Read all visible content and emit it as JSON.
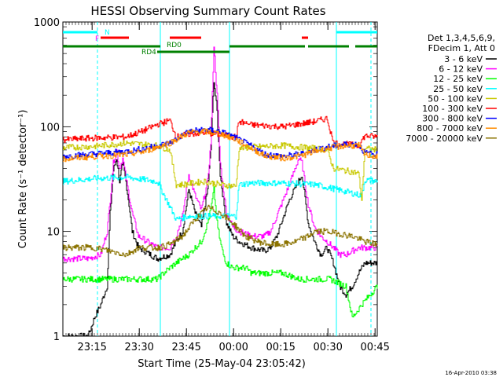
{
  "chart_data": {
    "type": "line",
    "title": "HESSI Observing Summary Count Rates",
    "xlabel": "Start Time (25-May-04 23:05:42)",
    "ylabel": "Count Rate (s⁻¹ detector⁻¹)",
    "yscale": "log",
    "ylim": [
      1,
      1000
    ],
    "xlim_minutes": [
      0,
      100
    ],
    "x_ticks": [
      "23:15",
      "23:30",
      "23:45",
      "00:00",
      "00:15",
      "00:30",
      "00:45"
    ],
    "y_ticks": [
      "1",
      "10",
      "100",
      "1000"
    ],
    "footer": "16-Apr-2010 03:38",
    "legend_header": [
      "Det 1,3,4,5,6,9,",
      "FDecim 1, Att 0"
    ],
    "series": [
      {
        "name": "3 - 6 keV",
        "color": "#000000",
        "x": [
          0,
          8,
          10,
          12,
          14,
          15,
          16,
          17,
          18,
          19,
          20,
          21,
          22,
          24,
          30,
          34,
          36,
          38,
          40,
          42,
          44,
          46,
          47,
          48,
          49,
          50,
          51,
          52,
          54,
          56,
          60,
          64,
          66,
          68,
          72,
          76,
          78,
          80,
          82,
          84,
          86,
          88,
          90,
          92,
          94,
          96,
          98,
          100
        ],
        "values": [
          1,
          1,
          1.5,
          2,
          3,
          15,
          38,
          50,
          30,
          45,
          30,
          18,
          10,
          7,
          5.5,
          6,
          8,
          10,
          25,
          15,
          11,
          25,
          60,
          280,
          140,
          35,
          20,
          12,
          9,
          8,
          7,
          6.5,
          7,
          9,
          20,
          35,
          12,
          8,
          6,
          7,
          5,
          3,
          2.5,
          3,
          4,
          5,
          5,
          5
        ]
      },
      {
        "name": "6 - 12 keV",
        "color": "#ff00ff",
        "x": [
          0,
          8,
          12,
          14,
          15,
          16,
          17,
          18,
          19,
          20,
          21,
          22,
          24,
          30,
          34,
          36,
          38,
          40,
          42,
          44,
          46,
          47,
          48,
          49,
          50,
          51,
          52,
          54,
          56,
          60,
          64,
          66,
          68,
          72,
          75,
          76,
          78,
          80,
          82,
          84,
          86,
          88,
          90,
          92,
          94,
          96,
          98,
          100
        ],
        "values": [
          5.5,
          5.5,
          6,
          10,
          20,
          45,
          60,
          40,
          50,
          32,
          22,
          15,
          9,
          7,
          7,
          9,
          14,
          35,
          22,
          16,
          30,
          70,
          600,
          200,
          45,
          25,
          15,
          11,
          10,
          9,
          9,
          10,
          14,
          28,
          50,
          45,
          18,
          11,
          9,
          8,
          7,
          6,
          6,
          6.5,
          7,
          7,
          7,
          7
        ]
      },
      {
        "name": "12 - 25 keV",
        "color": "#00ff00",
        "x": [
          0,
          10,
          20,
          30,
          32,
          34,
          36,
          38,
          40,
          42,
          44,
          46,
          47,
          48,
          49,
          50,
          51,
          52,
          54,
          56,
          58,
          60,
          62,
          64,
          66,
          70,
          75,
          80,
          85,
          90,
          92,
          95,
          100
        ],
        "values": [
          3.5,
          3.5,
          3.5,
          3.5,
          4,
          4.5,
          5,
          5.5,
          6,
          7,
          8,
          12,
          16,
          25,
          12,
          8,
          6,
          5,
          4.5,
          4.5,
          4.5,
          4,
          4,
          4,
          4,
          4,
          3.5,
          3.5,
          3.5,
          3,
          1.5,
          2,
          3
        ]
      },
      {
        "name": "25 - 50 keV",
        "color": "#00ffff",
        "x": [
          0,
          10,
          20,
          30,
          36,
          40,
          45,
          50,
          55,
          56,
          60,
          70,
          80,
          85,
          90,
          95,
          96,
          100
        ],
        "values": [
          30,
          32,
          33,
          30,
          13,
          14,
          14,
          14,
          14,
          28,
          29,
          29,
          28,
          26,
          24,
          22,
          31,
          30
        ]
      },
      {
        "name": "50 - 100 keV",
        "color": "#c8c800",
        "x": [
          0,
          10,
          20,
          30,
          34,
          36,
          38,
          45,
          50,
          55,
          56,
          60,
          70,
          80,
          84,
          86,
          90,
          94,
          95,
          96,
          100
        ],
        "values": [
          63,
          65,
          70,
          66,
          60,
          28,
          28,
          30,
          28,
          27,
          62,
          64,
          66,
          62,
          60,
          40,
          38,
          36,
          20,
          62,
          60
        ]
      },
      {
        "name": "100 - 300 keV",
        "color": "#ff0000",
        "x": [
          0,
          10,
          20,
          25,
          30,
          34,
          36,
          40,
          45,
          50,
          55,
          56,
          60,
          70,
          80,
          84,
          86,
          90,
          94,
          96,
          100
        ],
        "values": [
          75,
          78,
          80,
          90,
          105,
          115,
          80,
          85,
          88,
          84,
          80,
          112,
          104,
          100,
          112,
          120,
          70,
          68,
          66,
          82,
          80
        ]
      },
      {
        "name": "300 - 800 keV",
        "color": "#0000ff",
        "x": [
          0,
          10,
          20,
          26,
          30,
          34,
          40,
          45,
          50,
          55,
          60,
          64,
          70,
          76,
          80,
          84,
          90,
          94,
          96,
          100
        ],
        "values": [
          52,
          55,
          58,
          62,
          66,
          70,
          90,
          94,
          90,
          78,
          65,
          55,
          52,
          55,
          60,
          64,
          68,
          68,
          56,
          54
        ]
      },
      {
        "name": "800 - 7000 keV",
        "color": "#ff8c00",
        "x": [
          0,
          10,
          20,
          26,
          30,
          34,
          40,
          45,
          50,
          55,
          60,
          64,
          70,
          76,
          80,
          84,
          90,
          94,
          96,
          100
        ],
        "values": [
          49,
          52,
          54,
          58,
          64,
          70,
          88,
          90,
          86,
          75,
          62,
          53,
          50,
          53,
          58,
          62,
          66,
          66,
          54,
          52
        ]
      },
      {
        "name": "7000 - 20000 keV",
        "color": "#8b7300",
        "x": [
          0,
          10,
          20,
          24,
          30,
          34,
          38,
          42,
          46,
          50,
          54,
          58,
          62,
          66,
          70,
          74,
          78,
          80,
          84,
          88,
          92,
          96,
          100
        ],
        "values": [
          7,
          7,
          6,
          7,
          7,
          7.5,
          9,
          13,
          17,
          15,
          12,
          9,
          8,
          7.5,
          7.5,
          8,
          9,
          10,
          10,
          9.5,
          9,
          8,
          7.5
        ]
      }
    ],
    "state_bars": [
      {
        "label": "N",
        "color": "#00ffff",
        "y": "N",
        "segments": [
          [
            0,
            11
          ],
          [
            87,
            100
          ]
        ]
      },
      {
        "label": "F",
        "color": "#ff0000",
        "y": "F",
        "segments": [
          [
            12,
            21
          ],
          [
            34,
            44
          ],
          [
            76,
            78
          ]
        ]
      },
      {
        "label": "RD0",
        "color": "#008000",
        "y": "RD0",
        "segments": [
          [
            0,
            31
          ],
          [
            53,
            77
          ],
          [
            78,
            91
          ],
          [
            93,
            100
          ]
        ]
      },
      {
        "label": "RD4",
        "color": "#008000",
        "y": "RD4",
        "segments": [
          [
            30,
            53
          ]
        ]
      }
    ],
    "vlines": [
      {
        "x": 11,
        "color": "#00ffff",
        "style": "dashed"
      },
      {
        "x": 31,
        "color": "#00ffff",
        "style": "solid"
      },
      {
        "x": 53,
        "color": "#00ffff",
        "style": "solid"
      },
      {
        "x": 87,
        "color": "#00ffff",
        "style": "solid"
      },
      {
        "x": 98,
        "color": "#00ffff",
        "style": "dashed"
      }
    ]
  }
}
